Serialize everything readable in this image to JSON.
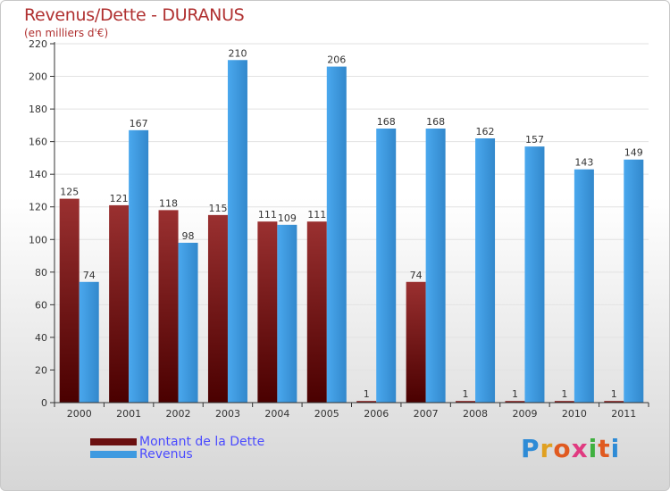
{
  "header": {
    "title": "Revenus/Dette - DURANUS",
    "subtitle": "(en milliers d'€)"
  },
  "chart_data": {
    "type": "bar",
    "title": "Revenus/Dette - DURANUS",
    "subtitle": "(en milliers d'€)",
    "categories": [
      "2000",
      "2001",
      "2002",
      "2003",
      "2004",
      "2005",
      "2006",
      "2007",
      "2008",
      "2009",
      "2010",
      "2011"
    ],
    "series": [
      {
        "name": "Montant de la Dette",
        "values": [
          125,
          121,
          118,
          115,
          111,
          111,
          1,
          74,
          1,
          1,
          1,
          1
        ],
        "color": "#7a1a1a"
      },
      {
        "name": "Revenus",
        "values": [
          74,
          167,
          98,
          210,
          109,
          206,
          168,
          168,
          162,
          157,
          143,
          149
        ],
        "color": "#3f9ae0"
      }
    ],
    "ylim": [
      0,
      220
    ],
    "yticks": [
      0,
      20,
      40,
      60,
      80,
      100,
      120,
      140,
      160,
      180,
      200,
      220
    ],
    "grid": true,
    "legend_position": "bottom-left"
  },
  "legend": {
    "items": [
      {
        "label": "Montant de la Dette",
        "color": "#6b0f0f"
      },
      {
        "label": "Revenus",
        "color": "#3f9ae0"
      }
    ]
  },
  "logo": {
    "letters": [
      "P",
      "r",
      "o",
      "x",
      "i",
      "t",
      "i"
    ]
  }
}
